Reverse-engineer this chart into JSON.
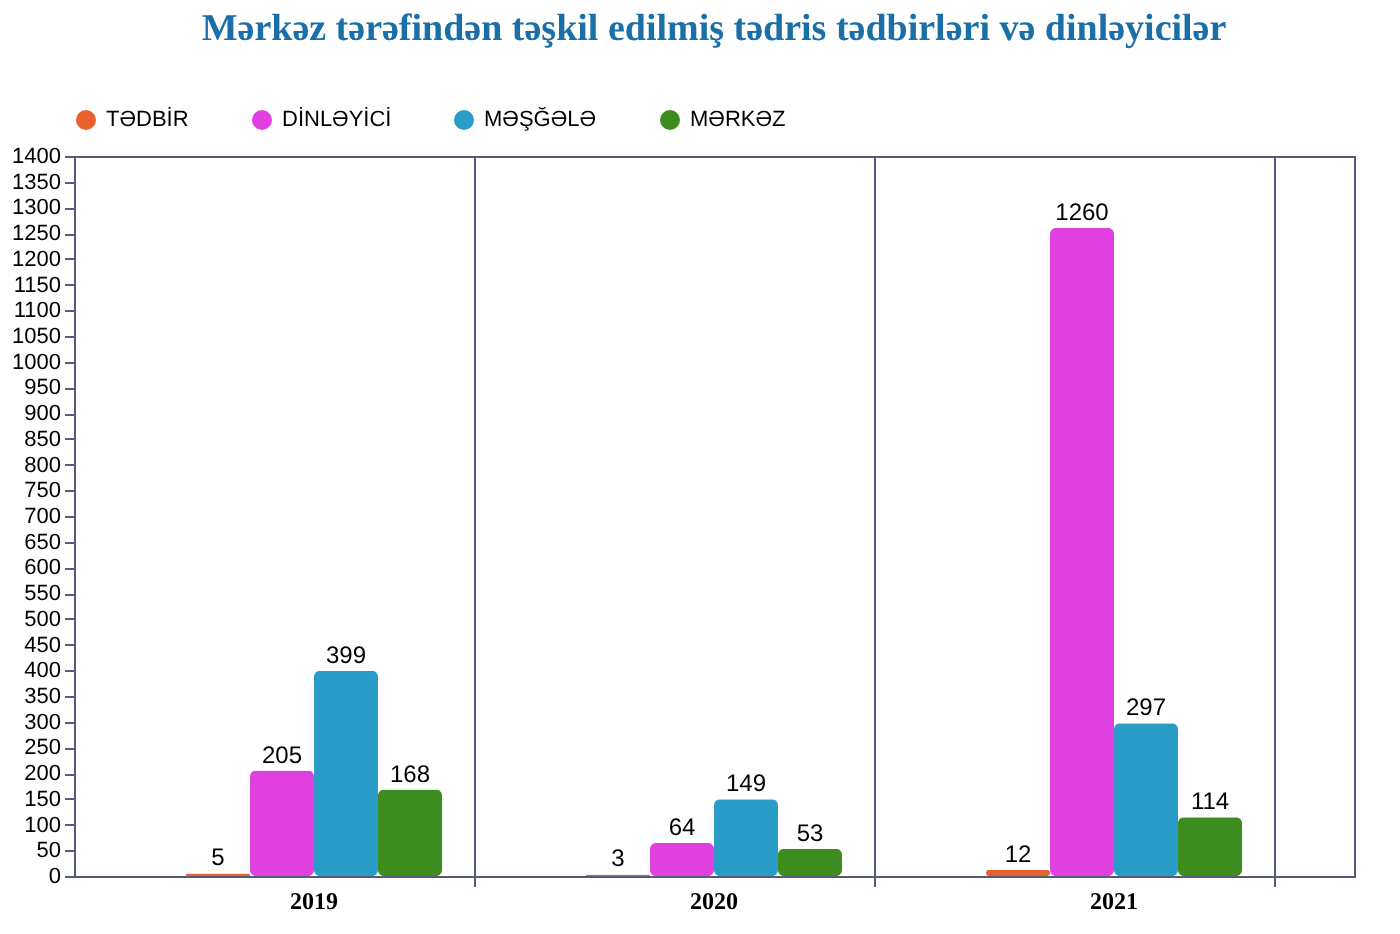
{
  "chart_data": {
    "type": "bar",
    "title": "Mərkəz tərəfindən təşkil edilmiş tədris tədbirləri və dinləyicilər",
    "categories": [
      "2019",
      "2020",
      "2021"
    ],
    "series": [
      {
        "name": "TƏDBİR",
        "color": "#e8602c",
        "values": [
          5,
          3,
          12
        ]
      },
      {
        "name": "DİNLƏYİCİ",
        "color": "#e040e0",
        "values": [
          205,
          64,
          1260
        ]
      },
      {
        "name": "MƏŞĞƏLƏ",
        "color": "#2a9cc8",
        "values": [
          399,
          149,
          297
        ]
      },
      {
        "name": "MƏRKƏZ",
        "color": "#3c8c1e",
        "values": [
          168,
          53,
          114
        ]
      }
    ],
    "ylim": [
      0,
      1400
    ],
    "yticks": [
      0,
      50,
      100,
      150,
      200,
      250,
      300,
      350,
      400,
      450,
      500,
      550,
      600,
      650,
      700,
      750,
      800,
      850,
      900,
      950,
      1000,
      1050,
      1100,
      1150,
      1200,
      1250,
      1300,
      1350,
      1400
    ],
    "grid": "x",
    "legend": "top left",
    "data_labels": true
  }
}
